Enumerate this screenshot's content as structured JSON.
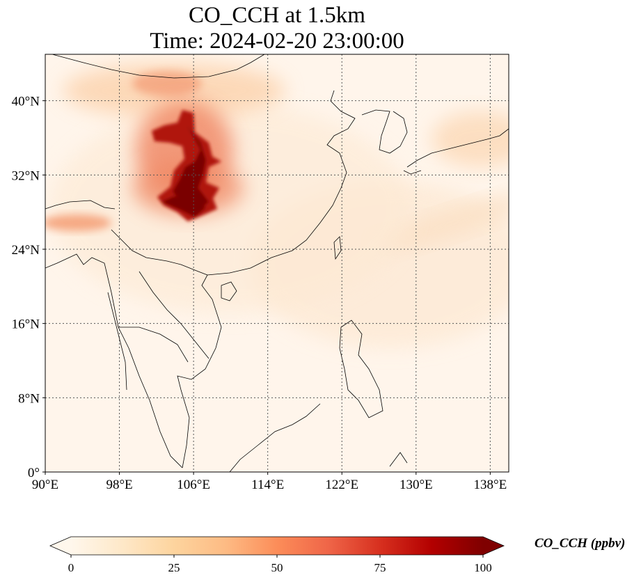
{
  "title": {
    "line1": "CO_CCH at 1.5km",
    "line2": "Time: 2024-02-20 23:00:00"
  },
  "map": {
    "lon_range": [
      90,
      140
    ],
    "lat_range": [
      0,
      45
    ],
    "lon_ticks": [
      {
        "value": 90,
        "label": "90°E"
      },
      {
        "value": 98,
        "label": "98°E"
      },
      {
        "value": 106,
        "label": "106°E"
      },
      {
        "value": 114,
        "label": "114°E"
      },
      {
        "value": 122,
        "label": "122°E"
      },
      {
        "value": 130,
        "label": "130°E"
      },
      {
        "value": 138,
        "label": "138°E"
      }
    ],
    "lat_ticks": [
      {
        "value": 40,
        "label": "40°N"
      },
      {
        "value": 32,
        "label": "32°N"
      },
      {
        "value": 24,
        "label": "24°N"
      },
      {
        "value": 16,
        "label": "16°N"
      },
      {
        "value": 8,
        "label": "8°N"
      },
      {
        "value": 0,
        "label": "0°"
      }
    ],
    "gridlines": "dotted",
    "background_color": "#fff5eb"
  },
  "colorbar": {
    "label": "CO_CCH (ppbv)",
    "colormap": "OrRd",
    "range": [
      0,
      100
    ],
    "extend": "both",
    "ticks": [
      {
        "value": 0,
        "label": "0"
      },
      {
        "value": 25,
        "label": "25"
      },
      {
        "value": 50,
        "label": "50"
      },
      {
        "value": 75,
        "label": "75"
      },
      {
        "value": 100,
        "label": "100"
      }
    ],
    "colors": [
      "#fff7ec",
      "#fee8c8",
      "#fdd49e",
      "#fdbb84",
      "#fc8d59",
      "#ef6548",
      "#d7301f",
      "#b30000",
      "#7f0000"
    ]
  }
}
